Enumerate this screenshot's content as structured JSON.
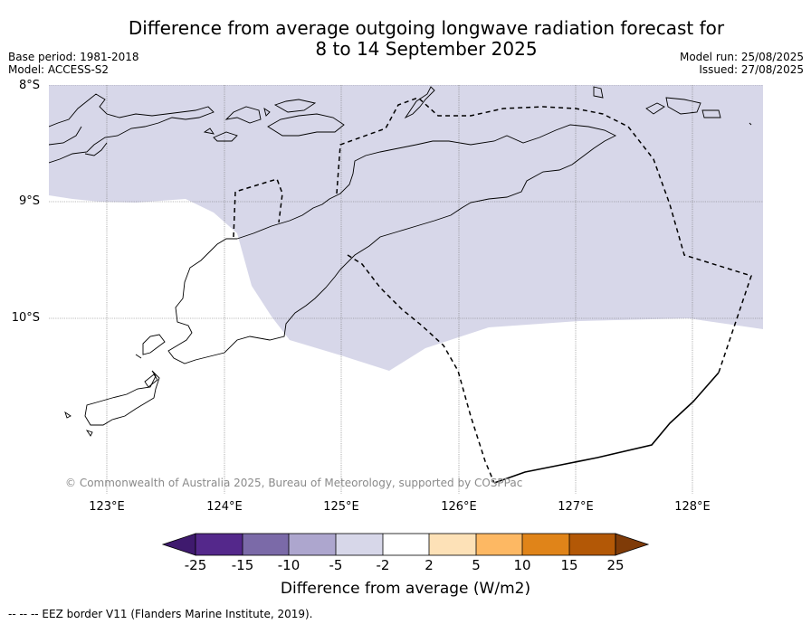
{
  "title_line1": "Difference from average outgoing longwave radiation forecast for",
  "title_line2": "8 to 14 September 2025",
  "base_period": "Base period: 1981-2018",
  "model": "Model: ACCESS-S2",
  "model_run": "Model run: 25/08/2025",
  "issued": "Issued: 27/08/2025",
  "latitude_labels": [
    "8°S",
    "9°S",
    "10°S"
  ],
  "longitude_labels": [
    "123°E",
    "124°E",
    "125°E",
    "126°E",
    "127°E",
    "128°E"
  ],
  "copyright": "© Commonwealth of Australia 2025, Bureau of Meteorology, supported by COSPPac",
  "colorbar": {
    "title": "Difference from average (W/m2)",
    "ticks": [
      "-25",
      "-15",
      "-10",
      "-5",
      "-2",
      "2",
      "5",
      "10",
      "15",
      "25"
    ],
    "colors": [
      "#3f1a6e",
      "#54288b",
      "#7b6aa8",
      "#ada6ce",
      "#d7d7e9",
      "#ffffff",
      "#fde1b7",
      "#fdb863",
      "#e08419",
      "#b35806",
      "#7f3b08"
    ]
  },
  "footer": "--  --  -- EEZ border V11 (Flanders Marine Institute, 2019).",
  "map_fill_color": "#d7d7e9"
}
